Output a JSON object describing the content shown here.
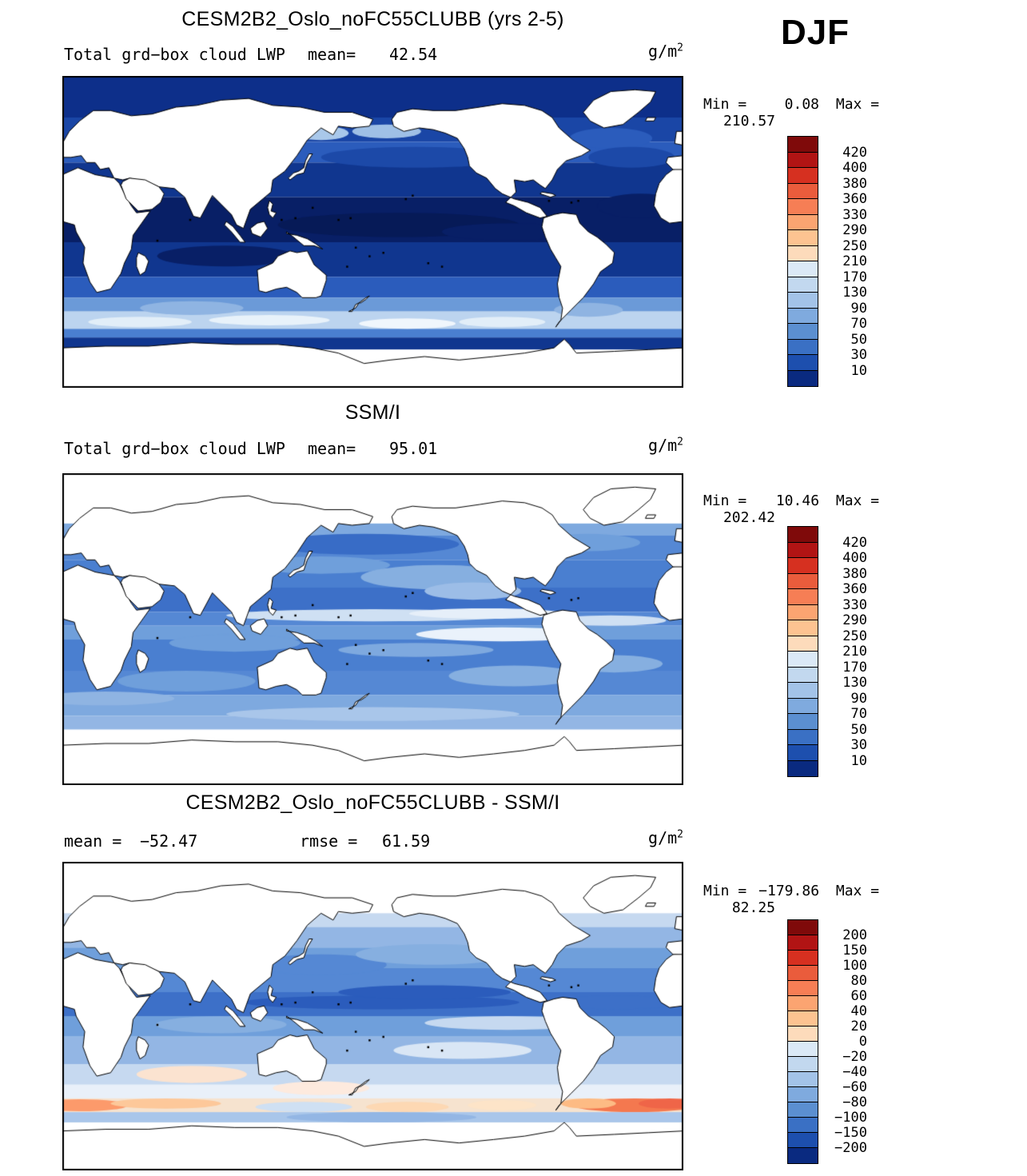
{
  "season": "DJF",
  "colorbar_colors": [
    "#7f0a0a",
    "#b11414",
    "#d63020",
    "#ea5c3c",
    "#f67e55",
    "#fba471",
    "#fdc391",
    "#fddbbb",
    "#dbe9f6",
    "#c2d8ef",
    "#a3c3e8",
    "#7faade",
    "#5b8fd0",
    "#3a70c4",
    "#1d4fae",
    "#0a2a80"
  ],
  "panels": [
    {
      "title": "CESM2B2_Oslo_noFC55CLUBB (yrs 2-5)",
      "field_label": "Total grd−box cloud LWP",
      "mean_label": "mean=",
      "mean_value": "42.54",
      "units_base": "g/m",
      "units_exp": "2",
      "min_label": "Min =",
      "min_value": "0.08",
      "max_label": "Max =",
      "max_value": "210.57",
      "ticks": [
        "420",
        "400",
        "380",
        "360",
        "330",
        "290",
        "250",
        "210",
        "170",
        "130",
        "90",
        "70",
        "50",
        "30",
        "10"
      ],
      "map_art": {
        "bands": [
          [
            90,
            66,
            "#0d2f8a"
          ],
          [
            66,
            52,
            "#1a46a6"
          ],
          [
            52,
            40,
            "#2b5cbc"
          ],
          [
            40,
            20,
            "#10368f"
          ],
          [
            20,
            -6,
            "#081f66"
          ],
          [
            -6,
            -26,
            "#10368f"
          ],
          [
            -26,
            -38,
            "#2b5cbc"
          ],
          [
            -38,
            -46,
            "#6b9ad8"
          ],
          [
            -46,
            -56,
            "#bcd4ef"
          ],
          [
            -56,
            -61,
            "#4a7fd0"
          ],
          [
            -61,
            -68,
            "#10368f"
          ],
          [
            -68,
            -90,
            "#ffffff"
          ]
        ],
        "blobs": [
          [
            150,
            57,
            16,
            4,
            "#a9c8ea"
          ],
          [
            188,
            58,
            20,
            4,
            "#9fc0e6"
          ],
          [
            318,
            54,
            24,
            6,
            "#2b5cbc"
          ],
          [
            205,
            43,
            55,
            6,
            "#1c49a8"
          ],
          [
            330,
            43,
            25,
            6,
            "#1c49a8"
          ],
          [
            95,
            -14,
            40,
            6,
            "#081f66"
          ],
          [
            195,
            4,
            70,
            7,
            "#061a57"
          ],
          [
            260,
            0,
            40,
            5,
            "#081f66"
          ],
          [
            335,
            15,
            25,
            7,
            "#081f66"
          ],
          [
            45,
            -52,
            30,
            3,
            "#e2eef8"
          ],
          [
            120,
            -51,
            35,
            3,
            "#e8f2fa"
          ],
          [
            200,
            -53,
            28,
            3,
            "#f0f6fc"
          ],
          [
            255,
            -52,
            25,
            3,
            "#e2eef8"
          ],
          [
            305,
            -45,
            20,
            4,
            "#8fb4e2"
          ],
          [
            75,
            -44,
            30,
            4,
            "#8fb4e2"
          ]
        ]
      }
    },
    {
      "title": "SSM/I",
      "field_label": "Total grd−box cloud LWP",
      "mean_label": "mean=",
      "mean_value": "95.01",
      "units_base": "g/m",
      "units_exp": "2",
      "min_label": "Min =",
      "min_value": "10.46",
      "max_label": "Max =",
      "max_value": "202.42",
      "ticks": [
        "420",
        "400",
        "380",
        "360",
        "330",
        "290",
        "250",
        "210",
        "170",
        "130",
        "90",
        "70",
        "50",
        "30",
        "10"
      ],
      "map_art": {
        "bands": [
          [
            90,
            61,
            "#ffffff"
          ],
          [
            61,
            54,
            "#7ea9df"
          ],
          [
            54,
            40,
            "#5588d4"
          ],
          [
            40,
            24,
            "#4a7fd0"
          ],
          [
            24,
            10,
            "#3d70c8"
          ],
          [
            10,
            2,
            "#5588d4"
          ],
          [
            2,
            -6,
            "#6f9fdb"
          ],
          [
            -6,
            -24,
            "#4a7fd0"
          ],
          [
            -24,
            -38,
            "#5588d4"
          ],
          [
            -38,
            -50,
            "#7ea9df"
          ],
          [
            -50,
            -58,
            "#93b6e4"
          ],
          [
            -58,
            -90,
            "#ffffff"
          ]
        ],
        "blobs": [
          [
            175,
            49,
            55,
            6,
            "#386cc6"
          ],
          [
            305,
            50,
            30,
            5,
            "#6f9fdb"
          ],
          [
            150,
            37,
            40,
            5,
            "#6f9fdb"
          ],
          [
            218,
            30,
            45,
            7,
            "#86afe0"
          ],
          [
            238,
            22,
            28,
            5,
            "#9cbde7"
          ],
          [
            180,
            8,
            85,
            3.5,
            "#cfe0f3"
          ],
          [
            246,
            9,
            45,
            3,
            "#e6eff9"
          ],
          [
            318,
            5,
            32,
            3,
            "#cfe0f3"
          ],
          [
            255,
            -3,
            50,
            4,
            "#eaf2fb"
          ],
          [
            205,
            -12,
            45,
            4,
            "#7ea9df"
          ],
          [
            100,
            -8,
            38,
            5,
            "#6f9fdb"
          ],
          [
            320,
            -20,
            28,
            5,
            "#86afe0"
          ],
          [
            72,
            -30,
            40,
            6,
            "#6f9fdb"
          ],
          [
            262,
            -27,
            38,
            6,
            "#86afe0"
          ],
          [
            180,
            -49,
            85,
            4,
            "#a9c6ea"
          ],
          [
            25,
            -40,
            40,
            4,
            "#8fb4e2"
          ]
        ]
      }
    },
    {
      "title": "CESM2B2_Oslo_noFC55CLUBB - SSM/I",
      "mean_label": "mean =",
      "mean_value": "−52.47",
      "rmse_label": "rmse =",
      "rmse_value": "61.59",
      "units_base": "g/m",
      "units_exp": "2",
      "min_label": "Min =",
      "min_value": "−179.86",
      "max_label": "Max =",
      "max_value": "82.25",
      "ticks": [
        "200",
        "150",
        "100",
        "80",
        "60",
        "40",
        "20",
        "0",
        "−20",
        "−40",
        "−60",
        "−80",
        "−100",
        "−150",
        "−200"
      ],
      "map_art": {
        "bands": [
          [
            90,
            60,
            "#ffffff"
          ],
          [
            60,
            52,
            "#c6d9f0"
          ],
          [
            52,
            40,
            "#93b6e4"
          ],
          [
            40,
            28,
            "#6f9fdb"
          ],
          [
            28,
            14,
            "#5588d4"
          ],
          [
            14,
            0,
            "#3d70c8"
          ],
          [
            0,
            -12,
            "#6f9fdb"
          ],
          [
            -12,
            -28,
            "#93b6e4"
          ],
          [
            -28,
            -40,
            "#c6d9f0"
          ],
          [
            -40,
            -48,
            "#e9f0f9"
          ],
          [
            -48,
            -56,
            "#f6e3cf"
          ],
          [
            -56,
            -62,
            "#a9c6ea"
          ],
          [
            -62,
            -90,
            "#ffffff"
          ]
        ],
        "blobs": [
          [
            185,
            8,
            80,
            4,
            "#2b5cbc"
          ],
          [
            210,
            14,
            50,
            4,
            "#2b5cbc"
          ],
          [
            320,
            8,
            38,
            4,
            "#3d70c8"
          ],
          [
            150,
            30,
            38,
            6,
            "#5588d4"
          ],
          [
            215,
            36,
            45,
            6,
            "#86afe0"
          ],
          [
            92,
            -5,
            38,
            5,
            "#86afe0"
          ],
          [
            258,
            -4,
            48,
            4,
            "#c6d9f0"
          ],
          [
            232,
            -20,
            40,
            5,
            "#d9e6f5"
          ],
          [
            75,
            -34,
            32,
            5,
            "#fbe3d0"
          ],
          [
            150,
            -42,
            28,
            4,
            "#fdeade"
          ],
          [
            332,
            -52,
            36,
            4,
            "#f4784f"
          ],
          [
            352,
            -51,
            18,
            3,
            "#ef6548"
          ],
          [
            305,
            -51,
            16,
            3,
            "#fdbb84"
          ],
          [
            10,
            -52,
            28,
            3.5,
            "#fc9a6b"
          ],
          [
            60,
            -51,
            32,
            3,
            "#fdc89a"
          ],
          [
            200,
            -53,
            24,
            3,
            "#fdd8b3"
          ],
          [
            255,
            -52,
            20,
            3,
            "#fde4c8"
          ],
          [
            140,
            -53,
            28,
            3,
            "#cfe0f3"
          ],
          [
            185,
            -59,
            55,
            3,
            "#93b6e4"
          ]
        ]
      }
    }
  ],
  "chart_data": [
    {
      "type": "heatmap",
      "title": "CESM2B2_Oslo_noFC55CLUBB (yrs 2-5)",
      "variable": "Total grd-box cloud LWP",
      "season": "DJF",
      "units": "g/m^2",
      "mean": 42.54,
      "min": 0.08,
      "max": 210.57,
      "contour_levels": [
        10,
        30,
        50,
        70,
        90,
        130,
        170,
        210,
        250,
        290,
        330,
        360,
        380,
        400,
        420
      ],
      "extent": {
        "lon": [
          0,
          360
        ],
        "lat": [
          -90,
          90
        ]
      },
      "legend_position": "right",
      "projection": "cylindrical-equidistant"
    },
    {
      "type": "heatmap",
      "title": "SSM/I",
      "variable": "Total grd-box cloud LWP",
      "season": "DJF",
      "units": "g/m^2",
      "mean": 95.01,
      "min": 10.46,
      "max": 202.42,
      "contour_levels": [
        10,
        30,
        50,
        70,
        90,
        130,
        170,
        210,
        250,
        290,
        330,
        360,
        380,
        400,
        420
      ],
      "extent": {
        "lon": [
          0,
          360
        ],
        "lat": [
          -90,
          90
        ]
      },
      "legend_position": "right",
      "projection": "cylindrical-equidistant"
    },
    {
      "type": "heatmap",
      "title": "CESM2B2_Oslo_noFC55CLUBB - SSM/I",
      "variable": "Total grd-box cloud LWP difference",
      "season": "DJF",
      "units": "g/m^2",
      "mean": -52.47,
      "rmse": 61.59,
      "min": -179.86,
      "max": 82.25,
      "contour_levels": [
        -200,
        -150,
        -100,
        -80,
        -60,
        -40,
        -20,
        0,
        20,
        40,
        60,
        80,
        100,
        150,
        200
      ],
      "extent": {
        "lon": [
          0,
          360
        ],
        "lat": [
          -90,
          90
        ]
      },
      "legend_position": "right",
      "projection": "cylindrical-equidistant"
    }
  ]
}
